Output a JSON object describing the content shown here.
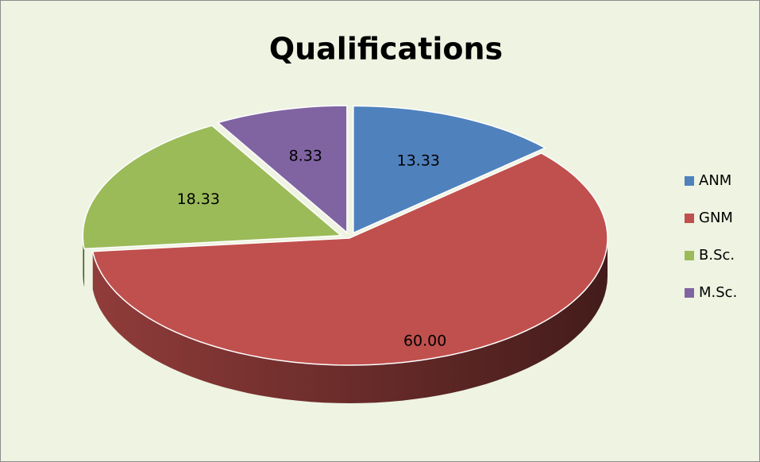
{
  "chart_data": {
    "type": "pie",
    "title": "Qualifications",
    "categories": [
      "ANM",
      "GNM",
      "B.Sc.",
      "M.Sc."
    ],
    "values": [
      13.33,
      60,
      18.33,
      8.33
    ],
    "value_labels": [
      "13.33",
      "60.00",
      "18.33",
      "8.33"
    ],
    "colors": [
      "#4f81bd",
      "#c0504d",
      "#9bbb59",
      "#8064a2"
    ],
    "legend": "right"
  }
}
